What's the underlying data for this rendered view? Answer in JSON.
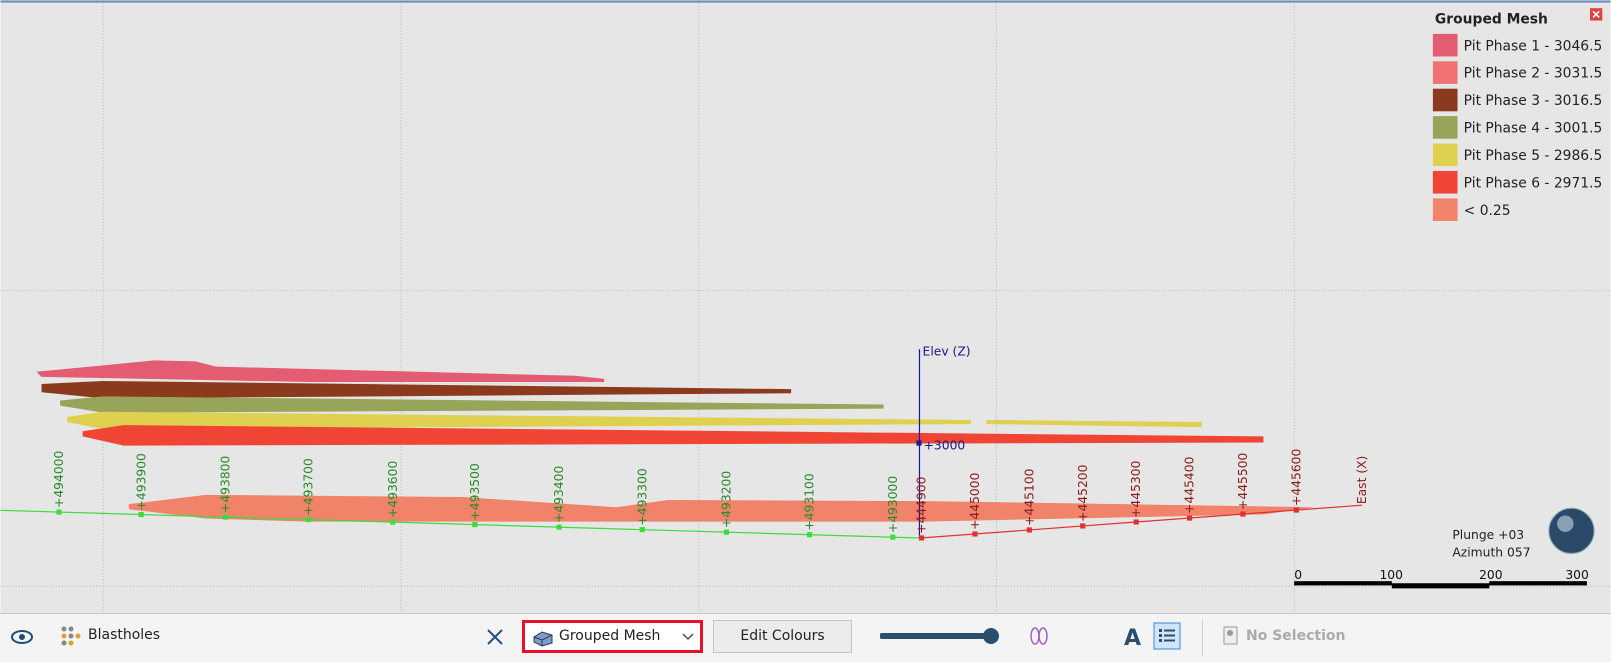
{
  "legend": {
    "title": "Grouped Mesh",
    "items": [
      {
        "label": "Pit Phase 1 - 3046.5",
        "color": "#e35c72"
      },
      {
        "label": "Pit Phase 2 - 3031.5",
        "color": "#f07272"
      },
      {
        "label": "Pit Phase 3 - 3016.5",
        "color": "#8b3a1e"
      },
      {
        "label": "Pit Phase 4 - 3001.5",
        "color": "#97a55a"
      },
      {
        "label": "Pit Phase 5 - 2986.5",
        "color": "#e0d050"
      },
      {
        "label": "Pit Phase 6 - 2971.5",
        "color": "#f04535"
      },
      {
        "label": "< 0.25",
        "color": "#f0836a"
      }
    ]
  },
  "axes": {
    "north_ticks": [
      "+494000",
      "+493900",
      "+493800",
      "+493700",
      "+493600",
      "+493500",
      "+493400",
      "+493300",
      "+493200",
      "+493100",
      "+493000"
    ],
    "east_ticks": [
      "+444900",
      "+445000",
      "+445100",
      "+445200",
      "+445300",
      "+445400",
      "+445500",
      "+445600"
    ],
    "east_label": "East (X)",
    "elev_label": "Elev (Z)",
    "elev_tick": "+3000"
  },
  "orientation": {
    "plunge": "Plunge +03",
    "azimuth": "Azimuth 057"
  },
  "scale_bar": [
    "0",
    "100",
    "200",
    "300"
  ],
  "toolbar": {
    "layer": "Blastholes",
    "dropdown": "Grouped Mesh",
    "button": "Edit Colours",
    "selection": "No Selection"
  }
}
